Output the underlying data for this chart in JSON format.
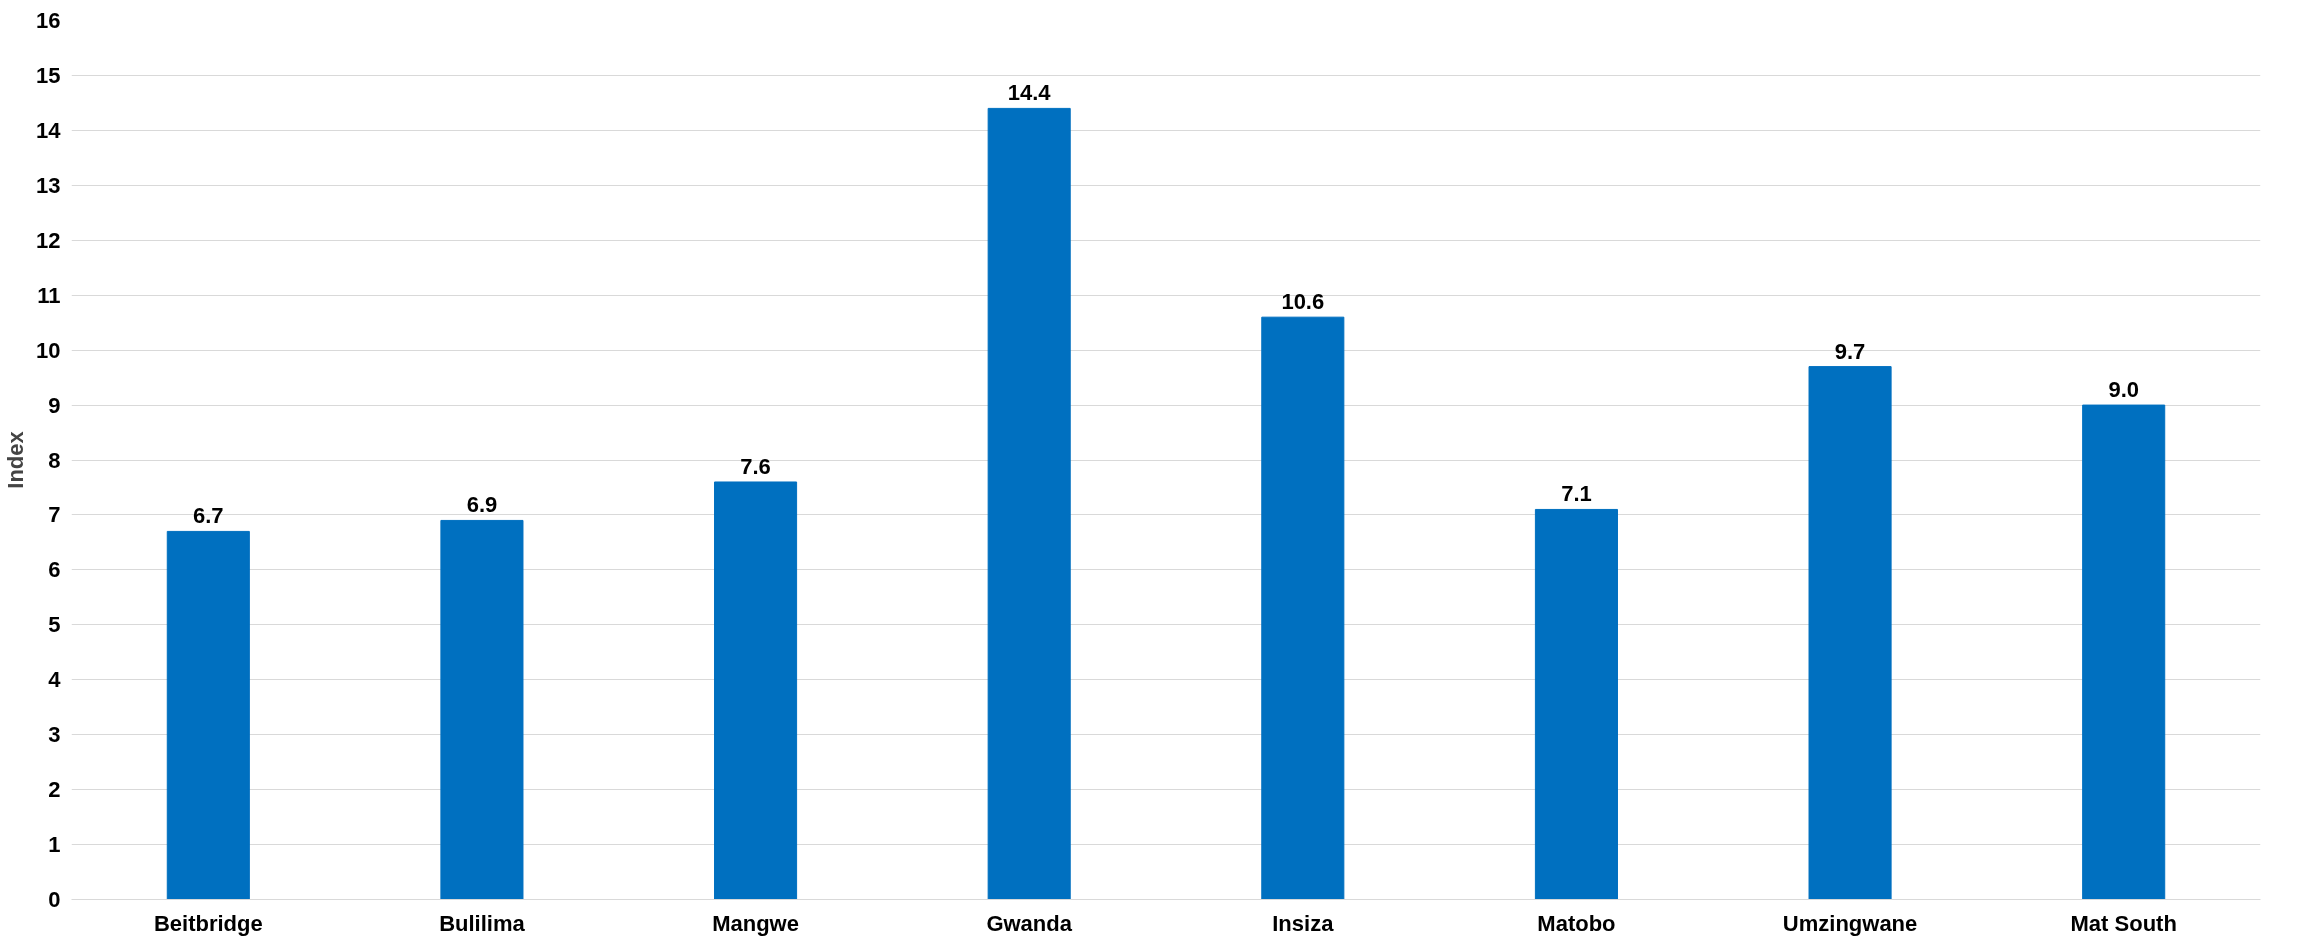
{
  "chart_data": {
    "type": "bar",
    "ylabel": "Index",
    "categories": [
      "Beitbridge",
      "Bulilima",
      "Mangwe",
      "Gwanda",
      "Insiza",
      "Matobo",
      "Umzingwane",
      "Mat South"
    ],
    "values": [
      6.7,
      6.9,
      7.6,
      14.4,
      10.6,
      7.1,
      9.7,
      9.0
    ],
    "color": "#0070c0",
    "ylim": [
      0,
      16
    ],
    "yticks": [
      0,
      1,
      2,
      3,
      4,
      5,
      6,
      7,
      8,
      9,
      10,
      11,
      12,
      13,
      14,
      15,
      16
    ],
    "grid": "y",
    "value_labels": [
      "6.7",
      "6.9",
      "7.6",
      "14.4",
      "10.6",
      "7.1",
      "9.7",
      "9.0"
    ]
  }
}
